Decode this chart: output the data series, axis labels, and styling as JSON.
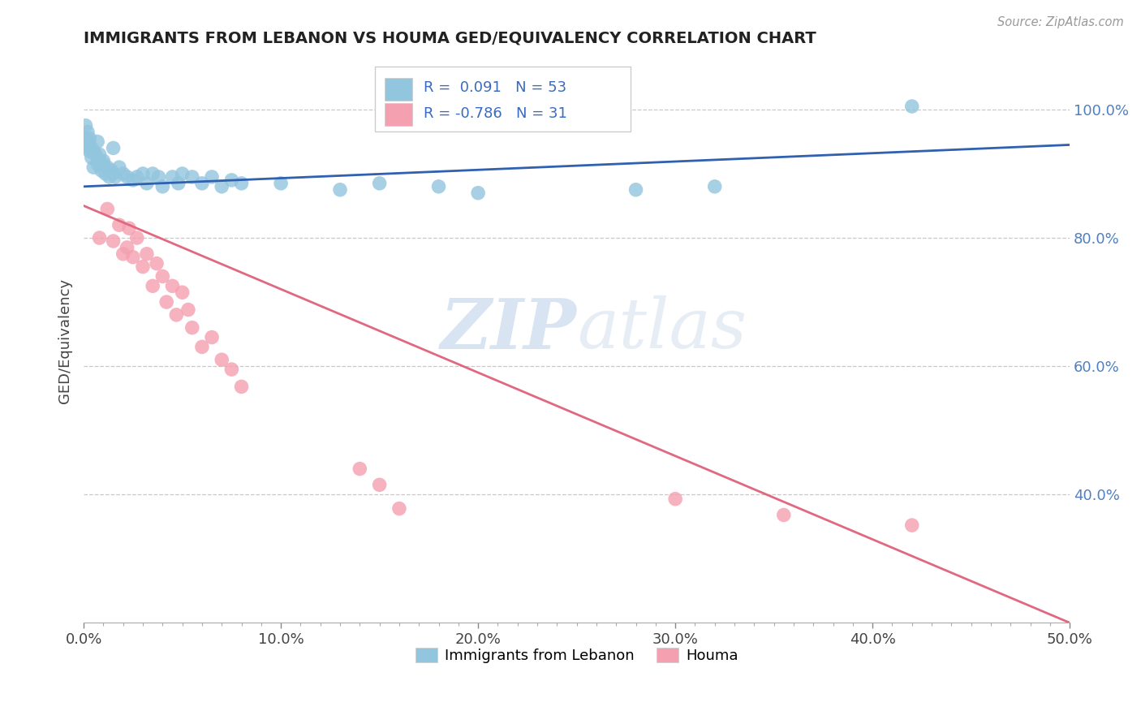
{
  "title": "IMMIGRANTS FROM LEBANON VS HOUMA GED/EQUIVALENCY CORRELATION CHART",
  "source_text": "Source: ZipAtlas.com",
  "ylabel": "GED/Equivalency",
  "xlim": [
    0.0,
    0.5
  ],
  "ylim": [
    0.2,
    1.08
  ],
  "xtick_labels": [
    "0.0%",
    "",
    "",
    "",
    "",
    "",
    "",
    "",
    "",
    "",
    "10.0%",
    "",
    "",
    "",
    "",
    "",
    "",
    "",
    "",
    "",
    "20.0%",
    "",
    "",
    "",
    "",
    "",
    "",
    "",
    "",
    "",
    "30.0%",
    "",
    "",
    "",
    "",
    "",
    "",
    "",
    "",
    "",
    "40.0%",
    "",
    "",
    "",
    "",
    "",
    "",
    "",
    "",
    "",
    "50.0%"
  ],
  "xtick_vals": [
    0.0,
    0.01,
    0.02,
    0.03,
    0.04,
    0.05,
    0.06,
    0.07,
    0.08,
    0.09,
    0.1,
    0.11,
    0.12,
    0.13,
    0.14,
    0.15,
    0.16,
    0.17,
    0.18,
    0.19,
    0.2,
    0.21,
    0.22,
    0.23,
    0.24,
    0.25,
    0.26,
    0.27,
    0.28,
    0.29,
    0.3,
    0.31,
    0.32,
    0.33,
    0.34,
    0.35,
    0.36,
    0.37,
    0.38,
    0.39,
    0.4,
    0.41,
    0.42,
    0.43,
    0.44,
    0.45,
    0.46,
    0.47,
    0.48,
    0.49,
    0.5
  ],
  "xtick_major_labels": [
    "0.0%",
    "10.0%",
    "20.0%",
    "30.0%",
    "40.0%",
    "50.0%"
  ],
  "xtick_major_vals": [
    0.0,
    0.1,
    0.2,
    0.3,
    0.4,
    0.5
  ],
  "ytick_labels": [
    "40.0%",
    "60.0%",
    "80.0%",
    "100.0%"
  ],
  "ytick_vals": [
    0.4,
    0.6,
    0.8,
    1.0
  ],
  "blue_R": 0.091,
  "blue_N": 53,
  "pink_R": -0.786,
  "pink_N": 31,
  "legend_label_blue": "Immigrants from Lebanon",
  "legend_label_pink": "Houma",
  "watermark_zip": "ZIP",
  "watermark_atlas": "atlas",
  "blue_color": "#92c5de",
  "pink_color": "#f4a0b0",
  "blue_line_color": "#3060b0",
  "pink_line_color": "#e06880",
  "title_color": "#222222",
  "grid_color": "#c8c8c8",
  "blue_scatter": [
    [
      0.001,
      0.975
    ],
    [
      0.001,
      0.955
    ],
    [
      0.002,
      0.965
    ],
    [
      0.002,
      0.94
    ],
    [
      0.003,
      0.955
    ],
    [
      0.003,
      0.935
    ],
    [
      0.003,
      0.945
    ],
    [
      0.004,
      0.94
    ],
    [
      0.004,
      0.925
    ],
    [
      0.005,
      0.935
    ],
    [
      0.005,
      0.91
    ],
    [
      0.006,
      0.93
    ],
    [
      0.007,
      0.95
    ],
    [
      0.007,
      0.915
    ],
    [
      0.008,
      0.92
    ],
    [
      0.008,
      0.93
    ],
    [
      0.009,
      0.905
    ],
    [
      0.01,
      0.92
    ],
    [
      0.01,
      0.915
    ],
    [
      0.011,
      0.9
    ],
    [
      0.012,
      0.91
    ],
    [
      0.013,
      0.895
    ],
    [
      0.014,
      0.905
    ],
    [
      0.015,
      0.9
    ],
    [
      0.015,
      0.94
    ],
    [
      0.016,
      0.895
    ],
    [
      0.018,
      0.91
    ],
    [
      0.02,
      0.9
    ],
    [
      0.022,
      0.895
    ],
    [
      0.025,
      0.89
    ],
    [
      0.027,
      0.895
    ],
    [
      0.03,
      0.9
    ],
    [
      0.032,
      0.885
    ],
    [
      0.035,
      0.9
    ],
    [
      0.038,
      0.895
    ],
    [
      0.04,
      0.88
    ],
    [
      0.045,
      0.895
    ],
    [
      0.048,
      0.885
    ],
    [
      0.05,
      0.9
    ],
    [
      0.055,
      0.895
    ],
    [
      0.06,
      0.885
    ],
    [
      0.065,
      0.895
    ],
    [
      0.07,
      0.88
    ],
    [
      0.075,
      0.89
    ],
    [
      0.08,
      0.885
    ],
    [
      0.1,
      0.885
    ],
    [
      0.13,
      0.875
    ],
    [
      0.15,
      0.885
    ],
    [
      0.18,
      0.88
    ],
    [
      0.2,
      0.87
    ],
    [
      0.28,
      0.875
    ],
    [
      0.32,
      0.88
    ],
    [
      0.42,
      1.005
    ]
  ],
  "pink_scatter": [
    [
      0.008,
      0.8
    ],
    [
      0.012,
      0.845
    ],
    [
      0.015,
      0.795
    ],
    [
      0.018,
      0.82
    ],
    [
      0.02,
      0.775
    ],
    [
      0.022,
      0.785
    ],
    [
      0.023,
      0.815
    ],
    [
      0.025,
      0.77
    ],
    [
      0.027,
      0.8
    ],
    [
      0.03,
      0.755
    ],
    [
      0.032,
      0.775
    ],
    [
      0.035,
      0.725
    ],
    [
      0.037,
      0.76
    ],
    [
      0.04,
      0.74
    ],
    [
      0.042,
      0.7
    ],
    [
      0.045,
      0.725
    ],
    [
      0.047,
      0.68
    ],
    [
      0.05,
      0.715
    ],
    [
      0.053,
      0.688
    ],
    [
      0.055,
      0.66
    ],
    [
      0.06,
      0.63
    ],
    [
      0.065,
      0.645
    ],
    [
      0.07,
      0.61
    ],
    [
      0.075,
      0.595
    ],
    [
      0.08,
      0.568
    ],
    [
      0.14,
      0.44
    ],
    [
      0.15,
      0.415
    ],
    [
      0.16,
      0.378
    ],
    [
      0.3,
      0.393
    ],
    [
      0.355,
      0.368
    ],
    [
      0.42,
      0.352
    ]
  ],
  "blue_line_x": [
    0.0,
    0.5
  ],
  "blue_line_y": [
    0.88,
    0.945
  ],
  "pink_line_x": [
    0.0,
    0.5
  ],
  "pink_line_y": [
    0.85,
    0.2
  ]
}
